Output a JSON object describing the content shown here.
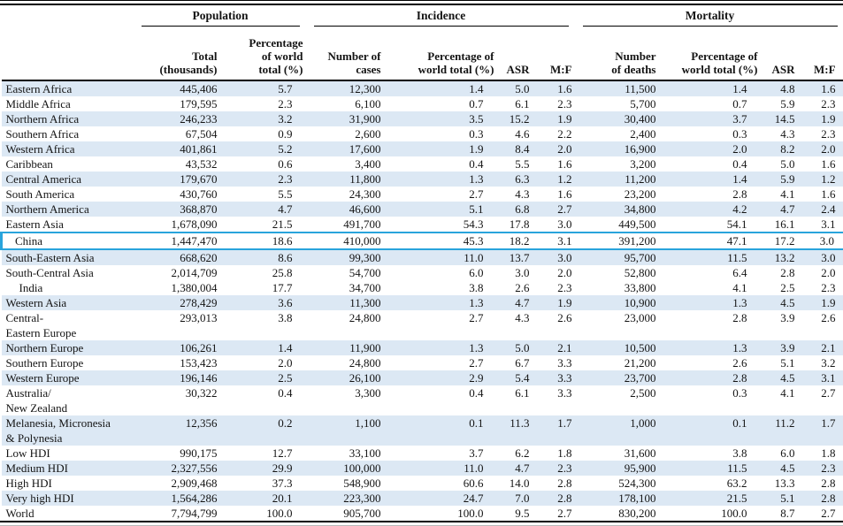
{
  "colors": {
    "stripe_background": "#dce8f4",
    "highlight_border": "#29a4dc",
    "rule": "#000000",
    "text": "#141414"
  },
  "table": {
    "groups": [
      {
        "label": "Population",
        "span": 2
      },
      {
        "label": "Incidence",
        "span": 4
      },
      {
        "label": "Mortality",
        "span": 4
      }
    ],
    "columns": [
      {
        "id": "region",
        "label": ""
      },
      {
        "id": "pop-total",
        "label": "Total\n(thousands)"
      },
      {
        "id": "pop-pct",
        "label": "Percentage\nof world\ntotal (%)"
      },
      {
        "id": "inc-cases",
        "label": "Number of\ncases"
      },
      {
        "id": "inc-pct",
        "label": "Percentage of\nworld total (%)"
      },
      {
        "id": "inc-asr",
        "label": "ASR"
      },
      {
        "id": "inc-mf",
        "label": "M:F"
      },
      {
        "id": "mort-deaths",
        "label": "Number\nof deaths"
      },
      {
        "id": "mort-pct",
        "label": "Percentage of\nworld total (%)"
      },
      {
        "id": "mort-asr",
        "label": "ASR"
      },
      {
        "id": "mort-mf",
        "label": "M:F"
      }
    ],
    "rows": [
      {
        "region": "Eastern Africa",
        "indent": false,
        "shaded": true,
        "highlight": false,
        "values": [
          "445,406",
          "5.7",
          "12,300",
          "1.4",
          "5.0",
          "1.6",
          "11,500",
          "1.4",
          "4.8",
          "1.6"
        ]
      },
      {
        "region": "Middle Africa",
        "indent": false,
        "shaded": false,
        "highlight": false,
        "values": [
          "179,595",
          "2.3",
          "6,100",
          "0.7",
          "6.1",
          "2.3",
          "5,700",
          "0.7",
          "5.9",
          "2.3"
        ]
      },
      {
        "region": "Northern Africa",
        "indent": false,
        "shaded": true,
        "highlight": false,
        "values": [
          "246,233",
          "3.2",
          "31,900",
          "3.5",
          "15.2",
          "1.9",
          "30,400",
          "3.7",
          "14.5",
          "1.9"
        ]
      },
      {
        "region": "Southern Africa",
        "indent": false,
        "shaded": false,
        "highlight": false,
        "values": [
          "67,504",
          "0.9",
          "2,600",
          "0.3",
          "4.6",
          "2.2",
          "2,400",
          "0.3",
          "4.3",
          "2.3"
        ]
      },
      {
        "region": "Western Africa",
        "indent": false,
        "shaded": true,
        "highlight": false,
        "values": [
          "401,861",
          "5.2",
          "17,600",
          "1.9",
          "8.4",
          "2.0",
          "16,900",
          "2.0",
          "8.2",
          "2.0"
        ]
      },
      {
        "region": "Caribbean",
        "indent": false,
        "shaded": false,
        "highlight": false,
        "values": [
          "43,532",
          "0.6",
          "3,400",
          "0.4",
          "5.5",
          "1.6",
          "3,200",
          "0.4",
          "5.0",
          "1.6"
        ]
      },
      {
        "region": "Central America",
        "indent": false,
        "shaded": true,
        "highlight": false,
        "values": [
          "179,670",
          "2.3",
          "11,800",
          "1.3",
          "6.3",
          "1.2",
          "11,200",
          "1.4",
          "5.9",
          "1.2"
        ]
      },
      {
        "region": "South America",
        "indent": false,
        "shaded": false,
        "highlight": false,
        "values": [
          "430,760",
          "5.5",
          "24,300",
          "2.7",
          "4.3",
          "1.6",
          "23,200",
          "2.8",
          "4.1",
          "1.6"
        ]
      },
      {
        "region": "Northern America",
        "indent": false,
        "shaded": true,
        "highlight": false,
        "values": [
          "368,870",
          "4.7",
          "46,600",
          "5.1",
          "6.8",
          "2.7",
          "34,800",
          "4.2",
          "4.7",
          "2.4"
        ]
      },
      {
        "region": "Eastern Asia",
        "indent": false,
        "shaded": false,
        "highlight": false,
        "values": [
          "1,678,090",
          "21.5",
          "491,700",
          "54.3",
          "17.8",
          "3.0",
          "449,500",
          "54.1",
          "16.1",
          "3.1"
        ]
      },
      {
        "region": "China",
        "indent": true,
        "shaded": false,
        "highlight": true,
        "values": [
          "1,447,470",
          "18.6",
          "410,000",
          "45.3",
          "18.2",
          "3.1",
          "391,200",
          "47.1",
          "17.2",
          "3.0"
        ]
      },
      {
        "region": "South-Eastern Asia",
        "indent": false,
        "shaded": true,
        "highlight": false,
        "values": [
          "668,620",
          "8.6",
          "99,300",
          "11.0",
          "13.7",
          "3.0",
          "95,700",
          "11.5",
          "13.2",
          "3.0"
        ]
      },
      {
        "region": "South-Central Asia",
        "indent": false,
        "shaded": false,
        "highlight": false,
        "values": [
          "2,014,709",
          "25.8",
          "54,700",
          "6.0",
          "3.0",
          "2.0",
          "52,800",
          "6.4",
          "2.8",
          "2.0"
        ]
      },
      {
        "region": "India",
        "indent": true,
        "shaded": false,
        "highlight": false,
        "values": [
          "1,380,004",
          "17.7",
          "34,700",
          "3.8",
          "2.6",
          "2.3",
          "33,800",
          "4.1",
          "2.5",
          "2.3"
        ]
      },
      {
        "region": "Western Asia",
        "indent": false,
        "shaded": true,
        "highlight": false,
        "values": [
          "278,429",
          "3.6",
          "11,300",
          "1.3",
          "4.7",
          "1.9",
          "10,900",
          "1.3",
          "4.5",
          "1.9"
        ]
      },
      {
        "region": "Central-\nEastern Europe",
        "indent": false,
        "shaded": false,
        "highlight": false,
        "values": [
          "293,013",
          "3.8",
          "24,800",
          "2.7",
          "4.3",
          "2.6",
          "23,000",
          "2.8",
          "3.9",
          "2.6"
        ]
      },
      {
        "region": "Northern Europe",
        "indent": false,
        "shaded": true,
        "highlight": false,
        "values": [
          "106,261",
          "1.4",
          "11,900",
          "1.3",
          "5.0",
          "2.1",
          "10,500",
          "1.3",
          "3.9",
          "2.1"
        ]
      },
      {
        "region": "Southern Europe",
        "indent": false,
        "shaded": false,
        "highlight": false,
        "values": [
          "153,423",
          "2.0",
          "24,800",
          "2.7",
          "6.7",
          "3.3",
          "21,200",
          "2.6",
          "5.1",
          "3.2"
        ]
      },
      {
        "region": "Western Europe",
        "indent": false,
        "shaded": true,
        "highlight": false,
        "values": [
          "196,146",
          "2.5",
          "26,100",
          "2.9",
          "5.4",
          "3.3",
          "23,700",
          "2.8",
          "4.5",
          "3.1"
        ]
      },
      {
        "region": "Australia/\nNew Zealand",
        "indent": false,
        "shaded": false,
        "highlight": false,
        "values": [
          "30,322",
          "0.4",
          "3,300",
          "0.4",
          "6.1",
          "3.3",
          "2,500",
          "0.3",
          "4.1",
          "2.7"
        ]
      },
      {
        "region": "Melanesia, Micronesia\n& Polynesia",
        "indent": false,
        "shaded": true,
        "highlight": false,
        "values": [
          "12,356",
          "0.2",
          "1,100",
          "0.1",
          "11.3",
          "1.7",
          "1,000",
          "0.1",
          "11.2",
          "1.7"
        ]
      },
      {
        "region": "Low HDI",
        "indent": false,
        "shaded": false,
        "highlight": false,
        "values": [
          "990,175",
          "12.7",
          "33,100",
          "3.7",
          "6.2",
          "1.8",
          "31,600",
          "3.8",
          "6.0",
          "1.8"
        ]
      },
      {
        "region": "Medium HDI",
        "indent": false,
        "shaded": true,
        "highlight": false,
        "values": [
          "2,327,556",
          "29.9",
          "100,000",
          "11.0",
          "4.7",
          "2.3",
          "95,900",
          "11.5",
          "4.5",
          "2.3"
        ]
      },
      {
        "region": "High HDI",
        "indent": false,
        "shaded": false,
        "highlight": false,
        "values": [
          "2,909,468",
          "37.3",
          "548,900",
          "60.6",
          "14.0",
          "2.8",
          "524,300",
          "63.2",
          "13.3",
          "2.8"
        ]
      },
      {
        "region": "Very high HDI",
        "indent": false,
        "shaded": true,
        "highlight": false,
        "values": [
          "1,564,286",
          "20.1",
          "223,300",
          "24.7",
          "7.0",
          "2.8",
          "178,100",
          "21.5",
          "5.1",
          "2.8"
        ]
      },
      {
        "region": "World",
        "indent": false,
        "shaded": false,
        "highlight": false,
        "values": [
          "7,794,799",
          "100.0",
          "905,700",
          "100.0",
          "9.5",
          "2.7",
          "830,200",
          "100.0",
          "8.7",
          "2.7"
        ]
      }
    ]
  }
}
